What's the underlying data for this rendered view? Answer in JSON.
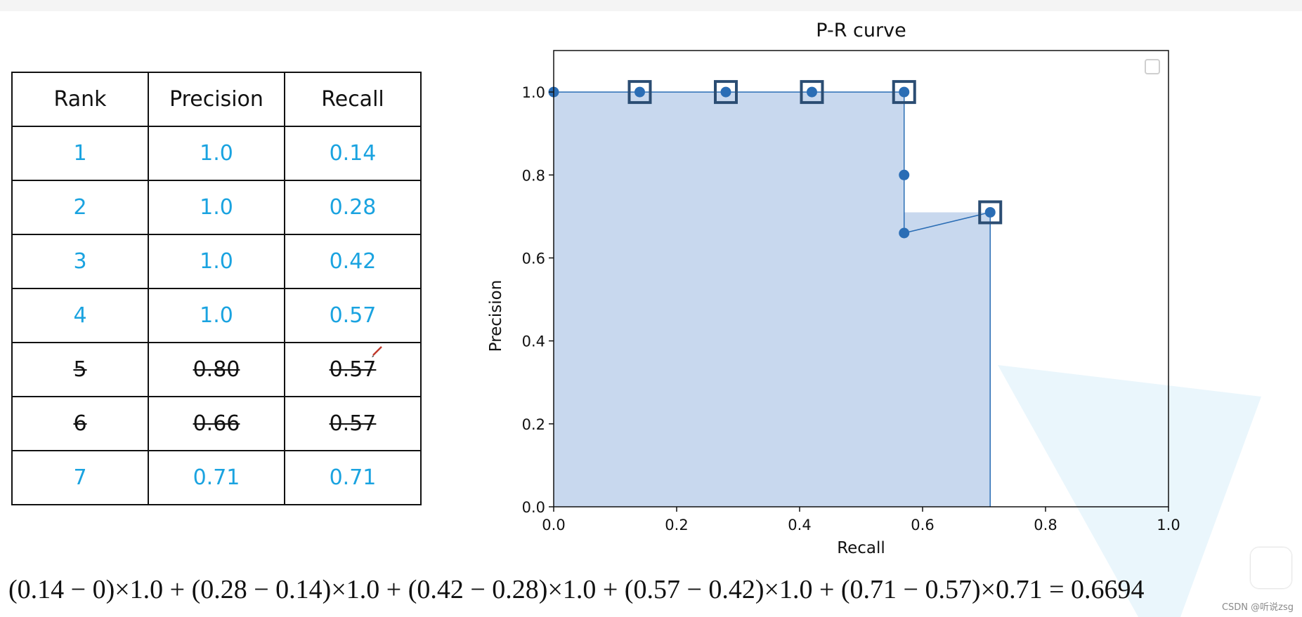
{
  "table": {
    "headers": [
      "Rank",
      "Precision",
      "Recall"
    ],
    "rows": [
      {
        "rank": "1",
        "precision": "1.0",
        "recall": "0.14",
        "struck": false
      },
      {
        "rank": "2",
        "precision": "1.0",
        "recall": "0.28",
        "struck": false
      },
      {
        "rank": "3",
        "precision": "1.0",
        "recall": "0.42",
        "struck": false
      },
      {
        "rank": "4",
        "precision": "1.0",
        "recall": "0.57",
        "struck": false
      },
      {
        "rank": "5",
        "precision": "0.80",
        "recall": "0.57",
        "struck": true
      },
      {
        "rank": "6",
        "precision": "0.66",
        "recall": "0.57",
        "struck": true
      },
      {
        "rank": "7",
        "precision": "0.71",
        "recall": "0.71",
        "struck": false
      }
    ]
  },
  "chart_data": {
    "type": "line",
    "title": "P-R curve",
    "xlabel": "Recall",
    "ylabel": "Precision",
    "xlim": [
      0.0,
      1.0
    ],
    "ylim": [
      0.0,
      1.1
    ],
    "xticks": [
      "0.0",
      "0.2",
      "0.4",
      "0.6",
      "0.8",
      "1.0"
    ],
    "yticks": [
      "0.0",
      "0.2",
      "0.4",
      "0.6",
      "0.8",
      "1.0"
    ],
    "series": [
      {
        "x": [
          0.0,
          0.14,
          0.28,
          0.42,
          0.57,
          0.57,
          0.57,
          0.71
        ],
        "y": [
          1.0,
          1.0,
          1.0,
          1.0,
          1.0,
          0.8,
          0.66,
          0.71
        ]
      }
    ],
    "highlighted_points": {
      "x": [
        0.14,
        0.28,
        0.42,
        0.57,
        0.71
      ],
      "y": [
        1.0,
        1.0,
        1.0,
        1.0,
        0.71
      ]
    },
    "area": {
      "x": [
        0.0,
        0.57,
        0.57,
        0.71,
        0.71
      ],
      "y": [
        1.0,
        1.0,
        0.71,
        0.71,
        0.0
      ]
    },
    "colors": {
      "line": "#2a6db5",
      "marker": "#2a6db5",
      "fill": "#c5d6ed",
      "square": "#2b4d73"
    },
    "legend": "top-right",
    "grid": false
  },
  "formula": "(0.14 − 0)×1.0 + (0.28 − 0.14)×1.0 + (0.42 − 0.28)×1.0 + (0.57 − 0.42)×1.0 + (0.71 − 0.57)×0.71 = 0.6694",
  "watermark": "CSDN @听说zsg",
  "icons": {
    "pen": "pen-cursor-icon",
    "play": "play-icon"
  }
}
